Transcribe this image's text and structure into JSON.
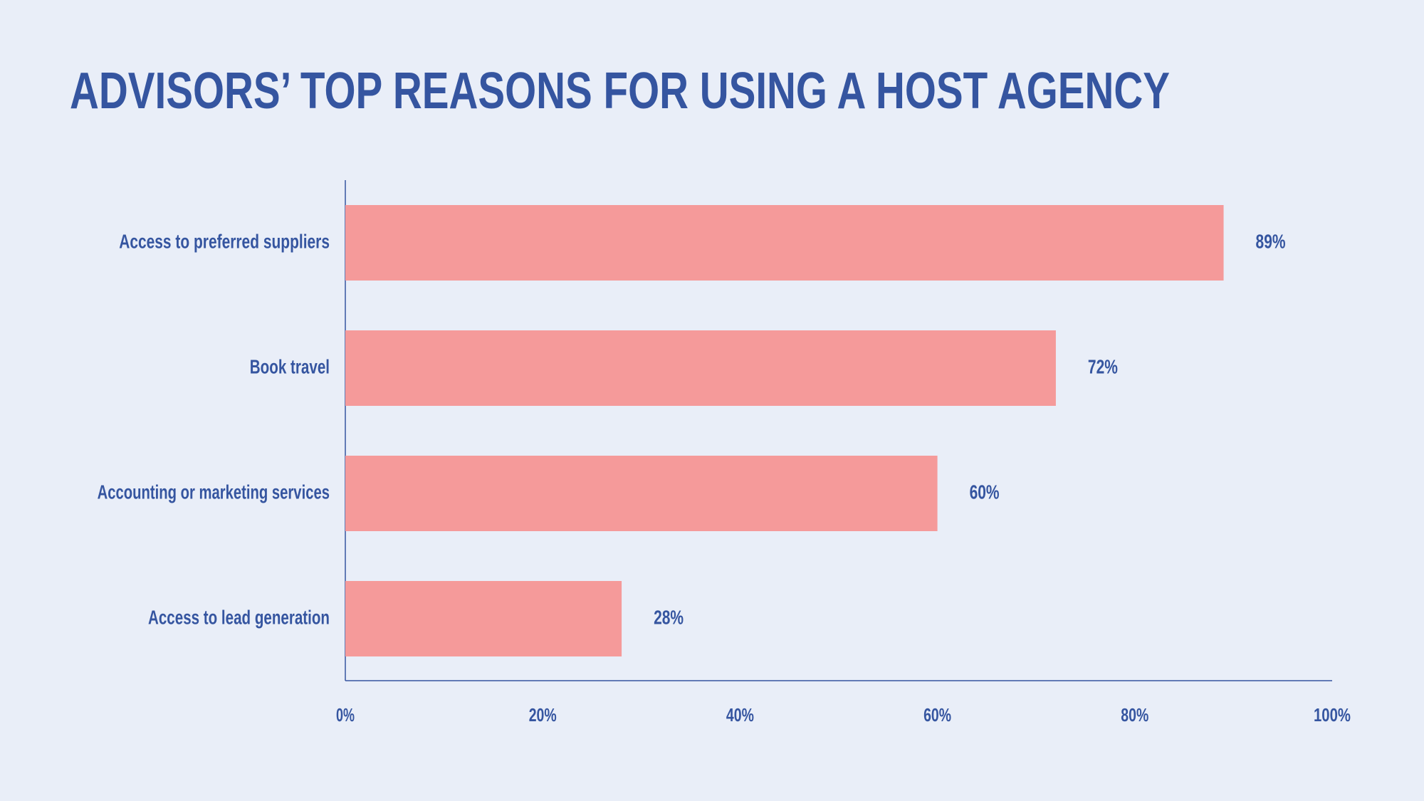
{
  "chart_data": {
    "type": "bar",
    "orientation": "horizontal",
    "title": "ADVISORS’ TOP REASONS FOR USING A HOST AGENCY",
    "categories": [
      "Access to preferred suppliers",
      "Book travel",
      "Accounting or marketing services",
      "Access to lead generation"
    ],
    "values": [
      89,
      72,
      60,
      28
    ],
    "value_labels": [
      "89%",
      "72%",
      "60%",
      "28%"
    ],
    "color": "#f59a9a",
    "xlim": [
      0,
      100
    ],
    "xticks": [
      {
        "value": 0,
        "label": "0%"
      },
      {
        "value": 20,
        "label": "20%"
      },
      {
        "value": 40,
        "label": "40%"
      },
      {
        "value": 60,
        "label": "60%"
      },
      {
        "value": 80,
        "label": "80%"
      },
      {
        "value": 100,
        "label": "100%"
      }
    ],
    "grid": false
  }
}
